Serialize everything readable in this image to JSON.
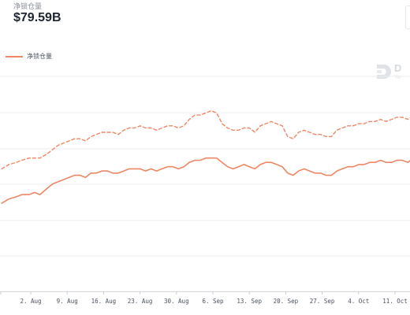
{
  "header": {
    "label": "净锁仓量",
    "value": "$79.59B"
  },
  "legend": {
    "label": "净锁仓量"
  },
  "watermark": {
    "text": "D",
    "subtext": "Yo"
  },
  "colors": {
    "series": "#ee8764",
    "grid": "#eceef2",
    "tick_text": "#4a5160"
  },
  "chart_data": {
    "type": "line",
    "title": "",
    "xlabel": "",
    "ylabel": "",
    "x_ticks": [
      "2. Aug",
      "9. Aug",
      "16. Aug",
      "23. Aug",
      "30. Aug",
      "6. Sep",
      "13. Sep",
      "20. Sep",
      "27. Sep",
      "4. Oct",
      "11. Oct"
    ],
    "x_range": [
      0,
      11.3
    ],
    "y_range": [
      0,
      100
    ],
    "grid": true,
    "legend_position": "top-left",
    "series": [
      {
        "style": "solid",
        "x": [
          0,
          0.2,
          0.4,
          0.55,
          0.75,
          0.9,
          1.05,
          1.25,
          1.4,
          1.55,
          1.7,
          1.85,
          2.0,
          2.15,
          2.3,
          2.45,
          2.6,
          2.75,
          2.9,
          3.05,
          3.2,
          3.35,
          3.5,
          3.65,
          3.8,
          3.95,
          4.1,
          4.25,
          4.4,
          4.55,
          4.7,
          4.85,
          5.0,
          5.15,
          5.3,
          5.45,
          5.6,
          5.75,
          5.9,
          6.05,
          6.2,
          6.35,
          6.5,
          6.65,
          6.8,
          6.95,
          7.1,
          7.25,
          7.4,
          7.55,
          7.7,
          7.85,
          8.0,
          8.15,
          8.3,
          8.45,
          8.6,
          8.75,
          8.9,
          9.05,
          9.2,
          9.35,
          9.5,
          9.65,
          9.8,
          9.95,
          10.1,
          10.25,
          10.4,
          10.55,
          10.7,
          10.85,
          11.0,
          11.15,
          11.3
        ],
        "values": [
          41,
          43,
          44,
          45,
          45,
          46,
          45,
          48,
          50,
          51,
          52,
          53,
          54,
          54,
          53,
          55,
          55,
          56,
          56,
          55,
          55,
          56,
          57,
          57,
          57,
          56,
          57,
          56,
          57,
          58,
          58,
          57,
          58,
          60,
          61,
          61,
          62,
          62,
          62,
          60,
          58,
          57,
          58,
          59,
          58,
          57,
          59,
          60,
          60,
          59,
          58,
          55,
          54,
          56,
          57,
          56,
          55,
          55,
          54,
          54,
          56,
          57,
          58,
          58,
          59,
          59,
          60,
          60,
          61,
          60,
          60,
          61,
          61,
          60,
          62
        ]
      },
      {
        "style": "dashed",
        "x": [
          0,
          0.2,
          0.4,
          0.55,
          0.75,
          0.9,
          1.05,
          1.25,
          1.4,
          1.55,
          1.7,
          1.85,
          2.0,
          2.15,
          2.3,
          2.45,
          2.6,
          2.75,
          2.9,
          3.05,
          3.2,
          3.35,
          3.5,
          3.65,
          3.8,
          3.95,
          4.1,
          4.25,
          4.4,
          4.55,
          4.7,
          4.85,
          5.0,
          5.15,
          5.3,
          5.45,
          5.6,
          5.75,
          5.9,
          6.05,
          6.2,
          6.35,
          6.5,
          6.65,
          6.8,
          6.95,
          7.1,
          7.25,
          7.4,
          7.55,
          7.7,
          7.85,
          8.0,
          8.15,
          8.3,
          8.45,
          8.6,
          8.75,
          8.9,
          9.05,
          9.2,
          9.35,
          9.5,
          9.65,
          9.8,
          9.95,
          10.1,
          10.25,
          10.4,
          10.55,
          10.7,
          10.85,
          11.0,
          11.15,
          11.3
        ],
        "values": [
          57,
          59,
          60,
          61,
          62,
          62,
          62,
          64,
          66,
          68,
          69,
          70,
          71,
          71,
          70,
          72,
          73,
          74,
          74,
          74,
          73,
          75,
          76,
          76,
          77,
          76,
          76,
          75,
          76,
          77,
          77,
          76,
          77,
          80,
          82,
          82,
          83,
          84,
          83,
          78,
          76,
          75,
          75,
          76,
          76,
          74,
          77,
          78,
          79,
          78,
          77,
          72,
          71,
          74,
          75,
          74,
          73,
          73,
          72,
          72,
          75,
          76,
          77,
          77,
          78,
          78,
          79,
          79,
          80,
          79,
          80,
          81,
          81,
          80,
          82
        ]
      }
    ]
  }
}
